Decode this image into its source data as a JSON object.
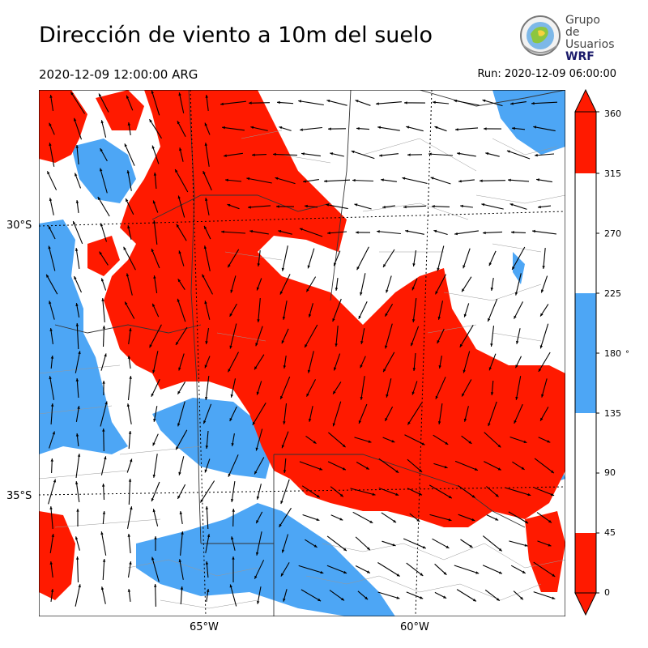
{
  "title": "Dirección de viento a 10m del suelo",
  "valid_time": "2020-12-09 12:00:00 ARG",
  "run_time": "Run: 2020-12-09 06:00:00",
  "logo": {
    "line1": "Grupo de",
    "line2": "Usuarios",
    "line3": "WRF"
  },
  "axes": {
    "lat_ticks": [
      "30°S",
      "35°S"
    ],
    "lon_ticks": [
      "65°W",
      "60°W"
    ]
  },
  "colorbar": {
    "ticks": [
      "0",
      "45",
      "90",
      "135",
      "180",
      "225",
      "270",
      "315",
      "360"
    ],
    "unit": "°",
    "colors": {
      "0-45": "#ff1a00",
      "45-135": "#ffffff",
      "135-225": "#4da6f5",
      "225-315": "#ffffff",
      "315-360": "#ff1a00"
    }
  },
  "colors": {
    "red": "#ff1a00",
    "blue": "#4da6f5",
    "white": "#ffffff"
  }
}
